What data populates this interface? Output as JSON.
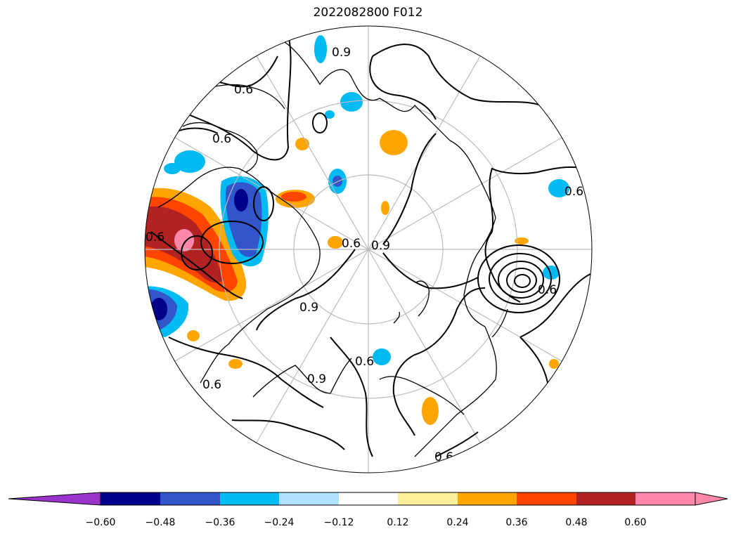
{
  "title": "2022082800 F012",
  "colorbar": {
    "ticks": [
      "−0.60",
      "−0.48",
      "−0.36",
      "−0.24",
      "−0.12",
      "0.12",
      "0.24",
      "0.36",
      "0.48",
      "0.60"
    ],
    "colors": [
      "#9933cc",
      "#00008b",
      "#3355cc",
      "#00bbf2",
      "#b0e2ff",
      "#ffffff",
      "#ffee99",
      "#ffa500",
      "#ff4500",
      "#b22222",
      "#ff88aa"
    ]
  },
  "contour_labels": [
    "0.9",
    "0.6",
    "0.6",
    "0.6",
    "0.6",
    "0.9",
    "0.6",
    "0.6",
    "0.9",
    "0.6",
    "0.6",
    "0.9",
    "0.6"
  ]
}
